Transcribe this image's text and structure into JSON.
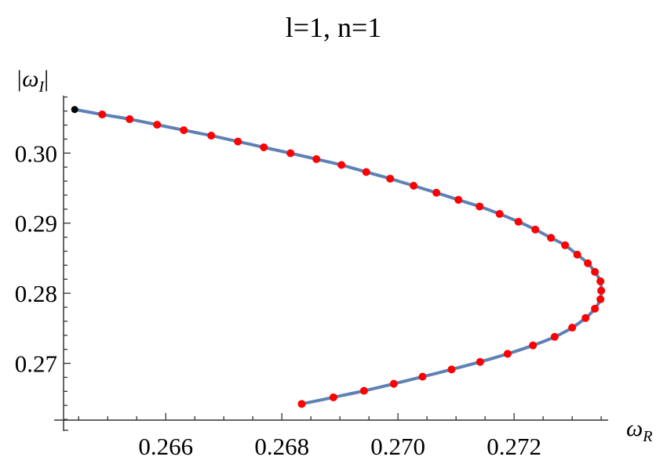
{
  "chart_data": {
    "type": "scatter",
    "title": "l=1, n=1",
    "xlabel": {
      "main": "ω",
      "sub": "R"
    },
    "ylabel": {
      "main": "|ω",
      "sub": "I",
      "close": "|"
    },
    "xlim": [
      0.26424,
      0.27362
    ],
    "ylim": [
      0.2619,
      0.3082
    ],
    "xticks": [
      0.266,
      0.268,
      0.27,
      0.272
    ],
    "xtick_labels": [
      "0.266",
      "0.268",
      "0.270",
      "0.272"
    ],
    "yticks": [
      0.27,
      0.28,
      0.29,
      0.3
    ],
    "ytick_labels": [
      "0.27",
      "0.28",
      "0.29",
      "0.30"
    ],
    "x_minor_step": 0.0005,
    "y_minor_step": 0.002,
    "grid": false,
    "colors": {
      "line": "#5E81B5",
      "points": "#FF0000",
      "start_point": "#000000"
    },
    "start_point": {
      "x": 0.264432,
      "y": 0.30622
    },
    "points": [
      {
        "x": 0.264905,
        "y": 0.30551
      },
      {
        "x": 0.265378,
        "y": 0.30484
      },
      {
        "x": 0.265851,
        "y": 0.30405
      },
      {
        "x": 0.266311,
        "y": 0.30327
      },
      {
        "x": 0.266784,
        "y": 0.30249
      },
      {
        "x": 0.267243,
        "y": 0.30165
      },
      {
        "x": 0.267689,
        "y": 0.30082
      },
      {
        "x": 0.268149,
        "y": 0.29998
      },
      {
        "x": 0.268595,
        "y": 0.29914
      },
      {
        "x": 0.269027,
        "y": 0.2983
      },
      {
        "x": 0.269453,
        "y": 0.2973
      },
      {
        "x": 0.269865,
        "y": 0.29635
      },
      {
        "x": 0.27027,
        "y": 0.29534
      },
      {
        "x": 0.270662,
        "y": 0.29434
      },
      {
        "x": 0.271041,
        "y": 0.29333
      },
      {
        "x": 0.271406,
        "y": 0.29238
      },
      {
        "x": 0.27175,
        "y": 0.29132
      },
      {
        "x": 0.272075,
        "y": 0.2902
      },
      {
        "x": 0.272365,
        "y": 0.28909
      },
      {
        "x": 0.272635,
        "y": 0.28791
      },
      {
        "x": 0.272878,
        "y": 0.28685
      },
      {
        "x": 0.273088,
        "y": 0.28551
      },
      {
        "x": 0.27327,
        "y": 0.28428
      },
      {
        "x": 0.273392,
        "y": 0.28305
      },
      {
        "x": 0.273487,
        "y": 0.28171
      },
      {
        "x": 0.2735,
        "y": 0.28037
      },
      {
        "x": 0.273487,
        "y": 0.27914
      },
      {
        "x": 0.273392,
        "y": 0.2778
      },
      {
        "x": 0.273231,
        "y": 0.27647
      },
      {
        "x": 0.273,
        "y": 0.27509
      },
      {
        "x": 0.272699,
        "y": 0.27378
      },
      {
        "x": 0.272325,
        "y": 0.27256
      },
      {
        "x": 0.271888,
        "y": 0.27136
      },
      {
        "x": 0.271415,
        "y": 0.27021
      },
      {
        "x": 0.270923,
        "y": 0.26913
      },
      {
        "x": 0.270423,
        "y": 0.26809
      },
      {
        "x": 0.269928,
        "y": 0.26708
      },
      {
        "x": 0.269415,
        "y": 0.26608
      },
      {
        "x": 0.268888,
        "y": 0.26515
      },
      {
        "x": 0.268342,
        "y": 0.26421
      }
    ]
  }
}
